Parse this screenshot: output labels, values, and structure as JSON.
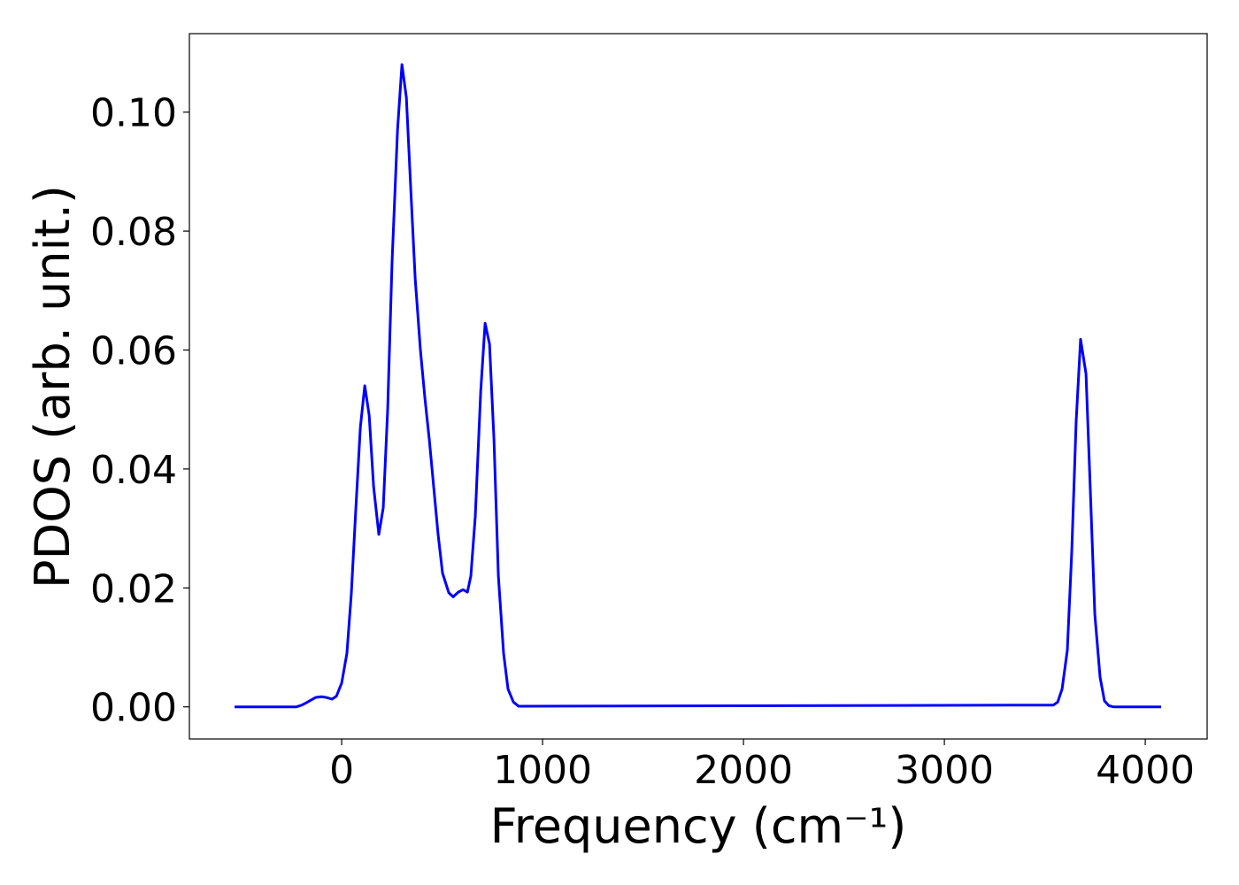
{
  "chart_data": {
    "type": "line",
    "xlabel": "Frequency (cm⁻¹)",
    "ylabel": "PDOS (arb. unit.)",
    "xlim": [
      -758,
      4308
    ],
    "ylim": [
      -0.0054,
      0.1132
    ],
    "xticks": [
      0,
      1000,
      2000,
      3000,
      4000
    ],
    "yticks": [
      {
        "value": 0,
        "label": "0.00"
      },
      {
        "value": 0.02,
        "label": "0.02"
      },
      {
        "value": 0.04,
        "label": "0.04"
      },
      {
        "value": 0.06,
        "label": "0.06"
      },
      {
        "value": 0.08,
        "label": "0.08"
      },
      {
        "value": 0.1,
        "label": "0.10"
      }
    ],
    "grid": false,
    "series": [
      {
        "color": "#0000ff",
        "x": [
          -533,
          -225,
          -198,
          -176,
          -150,
          -128,
          -101,
          -79,
          -48,
          -26,
          0,
          26,
          48,
          70,
          93,
          115,
          137,
          159,
          185,
          207,
          229,
          251,
          278,
          300,
          322,
          344,
          366,
          392,
          414,
          436,
          458,
          480,
          502,
          533,
          555,
          581,
          604,
          626,
          643,
          665,
          692,
          714,
          736,
          758,
          780,
          806,
          828,
          855,
          881,
          3542,
          3564,
          3586,
          3612,
          3634,
          3656,
          3678,
          3705,
          3727,
          3749,
          3775,
          3797,
          3819,
          3841,
          4079
        ],
        "values": [
          0,
          0,
          0.0003,
          0.0007,
          0.0012,
          0.0016,
          0.0017,
          0.0016,
          0.0013,
          0.0018,
          0.004,
          0.009,
          0.019,
          0.033,
          0.047,
          0.054,
          0.049,
          0.037,
          0.029,
          0.0335,
          0.05,
          0.075,
          0.097,
          0.108,
          0.1025,
          0.087,
          0.072,
          0.06,
          0.052,
          0.045,
          0.037,
          0.029,
          0.0225,
          0.0192,
          0.0185,
          0.0193,
          0.0197,
          0.0193,
          0.022,
          0.032,
          0.053,
          0.0645,
          0.061,
          0.045,
          0.022,
          0.009,
          0.003,
          0.0008,
          0.0001,
          0.0003,
          0.0008,
          0.003,
          0.0095,
          0.026,
          0.048,
          0.0618,
          0.056,
          0.036,
          0.0155,
          0.005,
          0.001,
          0.0002,
          0,
          0
        ]
      }
    ]
  }
}
